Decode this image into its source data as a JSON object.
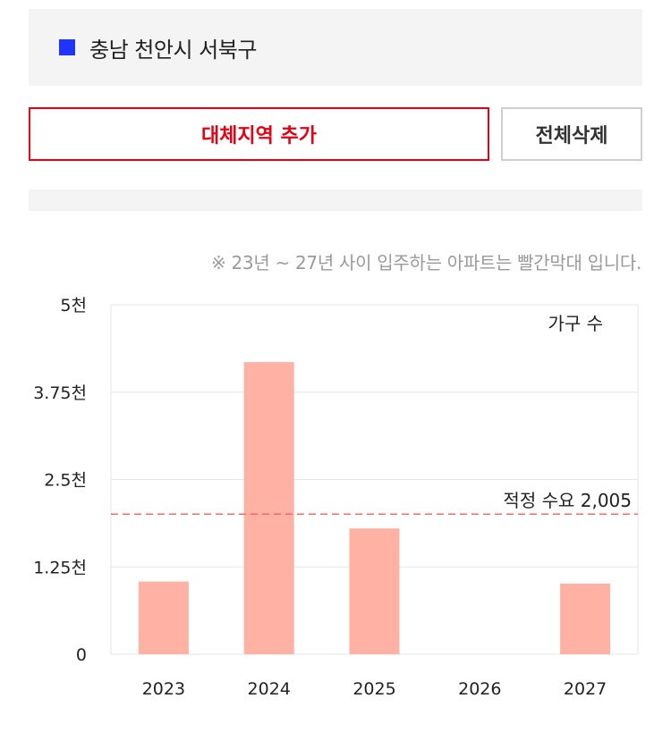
{
  "region": {
    "name": "충남 천안시 서북구",
    "marker_color": "#1f35ff"
  },
  "buttons": {
    "add_label": "대체지역 추가",
    "clear_label": "전체삭제"
  },
  "note": "※ 23년 ~ 27년 사이 입주하는 아파트는 빨간막대 입니다.",
  "chart_data": {
    "type": "bar",
    "categories": [
      "2023",
      "2024",
      "2025",
      "2026",
      "2027"
    ],
    "series": [
      {
        "name": "가구 수",
        "values": [
          1040,
          4180,
          1800,
          0,
          1010
        ],
        "color": "#ffb1a3"
      }
    ],
    "ylim": [
      0,
      5000
    ],
    "yticks": [
      0,
      1250,
      2500,
      3750,
      5000
    ],
    "ytick_labels": [
      "0",
      "1.25천",
      "2.5천",
      "3.75천",
      "5천"
    ],
    "legend_position": "top-right",
    "grid": true,
    "reference_line": {
      "value": 2005,
      "label": "적정 수요 2,005",
      "color": "#f26b6b"
    }
  }
}
